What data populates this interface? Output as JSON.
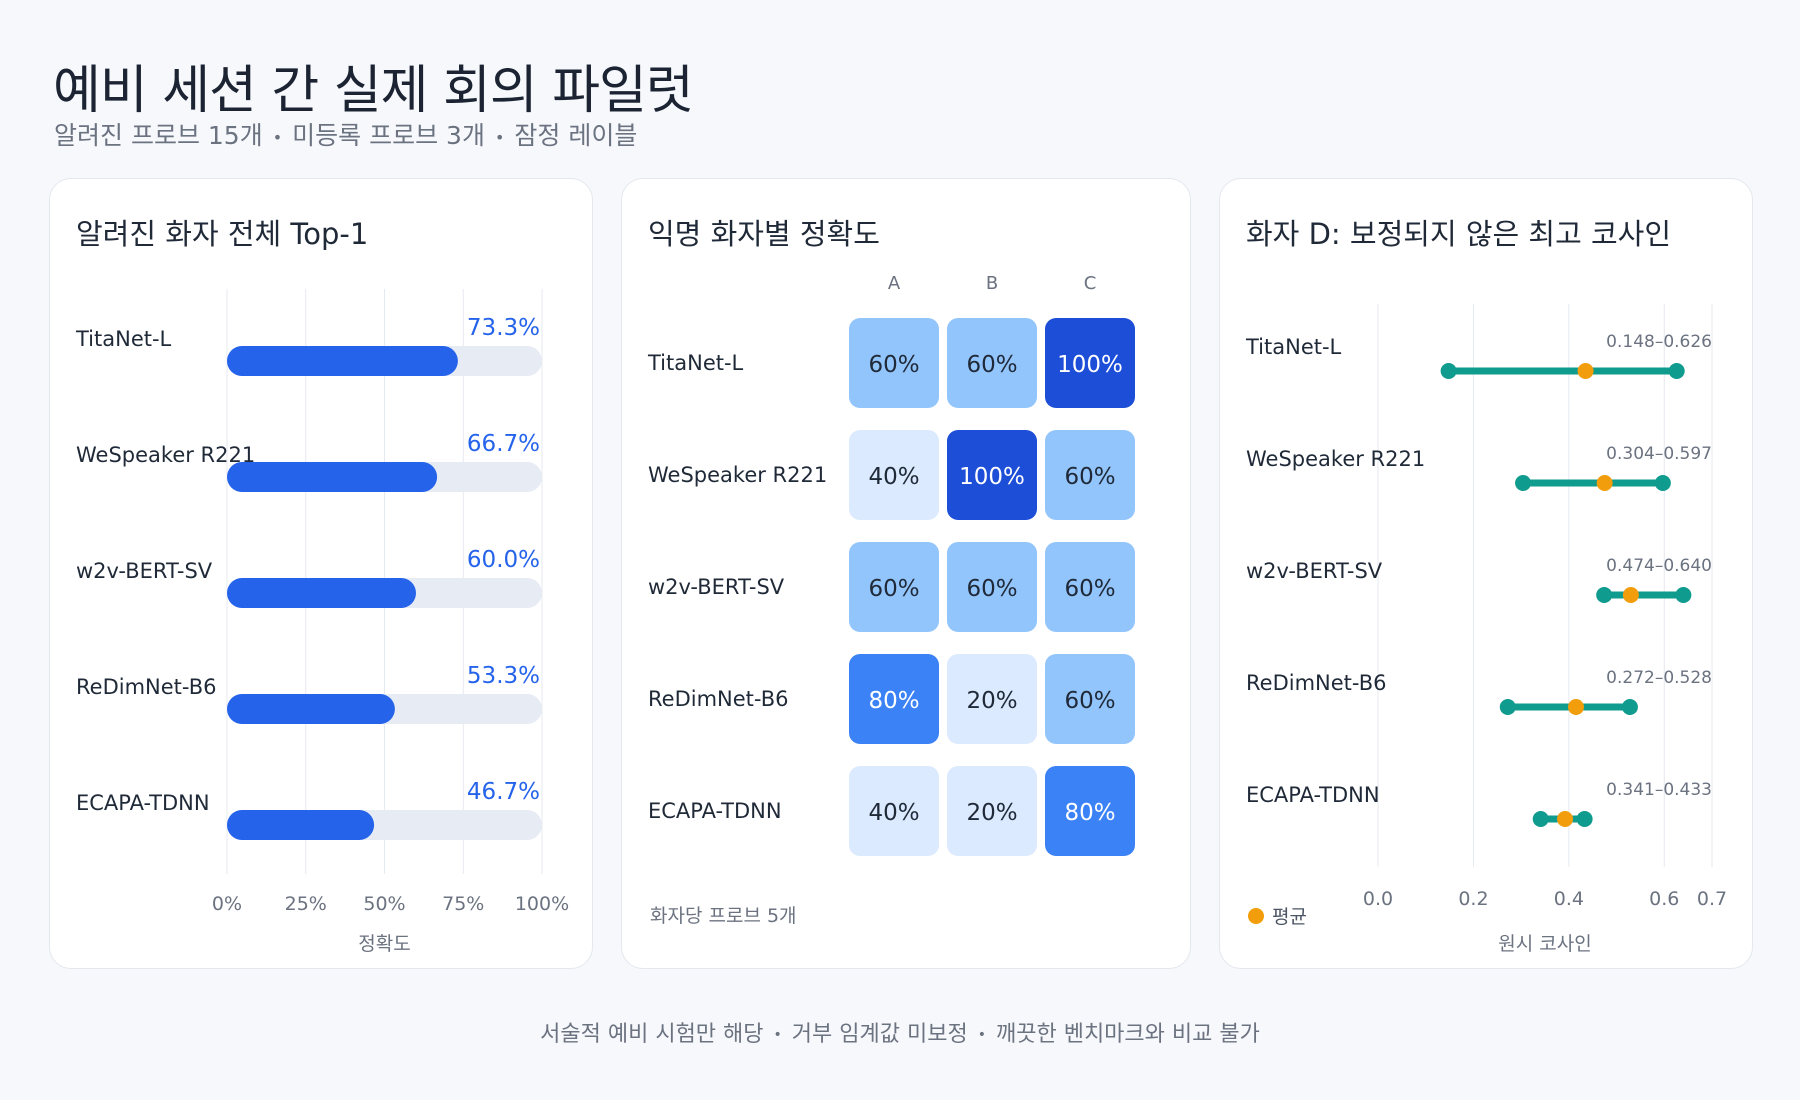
{
  "header": {
    "title": "예비 세션 간 실제 회의 파일럿",
    "subtitle_items": [
      "알려진 프로브 15개",
      "미등록 프로브 3개",
      "잠정 레이블"
    ]
  },
  "footer": {
    "items": [
      "서술적 예비 시험만 해당",
      "거부 임계값 미보정",
      "깨끗한 벤치마크와 비교 불가"
    ]
  },
  "colors": {
    "bar": "#2563eb",
    "bar_track": "#e6ebf4",
    "range_line": "#0f9b8e",
    "mean_dot": "#f29d0c"
  },
  "chart_data": [
    {
      "type": "bar",
      "title": "알려진 화자 전체 Top-1",
      "categories": [
        "TitaNet-L",
        "WeSpeaker R221",
        "w2v-BERT-SV",
        "ReDimNet-B6",
        "ECAPA-TDNN"
      ],
      "values": [
        73.3,
        66.7,
        60.0,
        53.3,
        46.7
      ],
      "value_labels": [
        "73.3%",
        "66.7%",
        "60.0%",
        "53.3%",
        "46.7%"
      ],
      "xlabel": "정확도",
      "ylabel": "",
      "xlim": [
        0,
        100
      ],
      "xticks": [
        0,
        25,
        50,
        75,
        100
      ],
      "xtick_labels": [
        "0%",
        "25%",
        "50%",
        "75%",
        "100%"
      ],
      "grid": true,
      "orientation": "horizontal"
    },
    {
      "type": "heatmap",
      "title": "익명 화자별 정확도",
      "columns": [
        "A",
        "B",
        "C"
      ],
      "rows": [
        "TitaNet-L",
        "WeSpeaker R221",
        "w2v-BERT-SV",
        "ReDimNet-B6",
        "ECAPA-TDNN"
      ],
      "values": [
        [
          60,
          60,
          100
        ],
        [
          40,
          100,
          60
        ],
        [
          60,
          60,
          60
        ],
        [
          80,
          20,
          60
        ],
        [
          40,
          20,
          80
        ]
      ],
      "cell_labels": [
        [
          "60%",
          "60%",
          "100%"
        ],
        [
          "40%",
          "100%",
          "60%"
        ],
        [
          "60%",
          "60%",
          "60%"
        ],
        [
          "80%",
          "20%",
          "60%"
        ],
        [
          "40%",
          "20%",
          "80%"
        ]
      ],
      "note": "화자당 프로브 5개",
      "color_scale": {
        "20": "#dbeafe",
        "40": "#dbeafe",
        "60": "#93c5fd",
        "80": "#3b82f6",
        "100": "#1d4ed8"
      }
    },
    {
      "type": "scatter",
      "title": "화자 D: 보정되지 않은 최고 코사인",
      "categories": [
        "TitaNet-L",
        "WeSpeaker R221",
        "w2v-BERT-SV",
        "ReDimNet-B6",
        "ECAPA-TDNN"
      ],
      "ranges": [
        [
          0.148,
          0.626
        ],
        [
          0.304,
          0.597
        ],
        [
          0.474,
          0.64
        ],
        [
          0.272,
          0.528
        ],
        [
          0.341,
          0.433
        ]
      ],
      "range_labels": [
        "0.148–0.626",
        "0.304–0.597",
        "0.474–0.640",
        "0.272–0.528",
        "0.341–0.433"
      ],
      "means": [
        0.435,
        0.475,
        0.53,
        0.415,
        0.392
      ],
      "xlabel": "원시 코사인",
      "xlim": [
        0.0,
        0.7
      ],
      "xticks": [
        0.0,
        0.2,
        0.4,
        0.6,
        0.7
      ],
      "xtick_labels": [
        "0.0",
        "0.2",
        "0.4",
        "0.6",
        "0.7"
      ],
      "legend": {
        "label": "평균",
        "placement": "bottom-left"
      },
      "grid": true
    }
  ]
}
